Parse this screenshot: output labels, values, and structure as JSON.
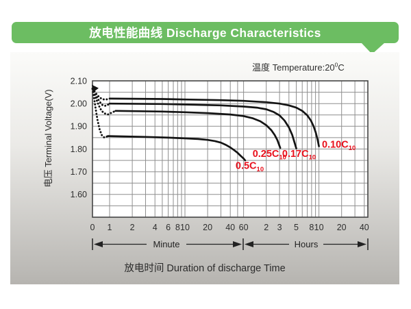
{
  "banner": {
    "title": "放电性能曲线 Discharge Characteristics"
  },
  "chart_data": {
    "type": "line",
    "title": "放电性能曲线 Discharge Characteristics",
    "temperature": {
      "prefix": "温度  Temperature:20",
      "sup": "0",
      "suffix": "C"
    },
    "ylabel": "电压 Terminal Voltage(V)",
    "xlabel": "放电时间  Duration of discharge Time",
    "colors": {
      "accent_green": "#6cbd62",
      "curve": "#141414",
      "label_red": "#e8101c",
      "grid": "#8e8e8e",
      "border": "#454545",
      "text": "#2e2e2e"
    },
    "y_axis": {
      "min": 1.5,
      "max": 2.1,
      "grid_step": 0.05,
      "ticks": [
        {
          "v": 2.1,
          "label": "2.10"
        },
        {
          "v": 2.0,
          "label": "2.00"
        },
        {
          "v": 1.9,
          "label": "1.90"
        },
        {
          "v": 1.8,
          "label": "1.80"
        },
        {
          "v": 1.7,
          "label": "1.70"
        },
        {
          "v": 1.6,
          "label": "1.60"
        }
      ]
    },
    "x_axis": {
      "scale": "log-time-minutes",
      "unit_spans": [
        {
          "label": "Minute"
        },
        {
          "label": "Hours"
        }
      ],
      "gridlines_t": [
        1,
        2,
        3,
        4,
        5,
        6,
        7,
        8,
        9,
        10,
        20,
        30,
        40,
        50,
        60,
        120,
        180,
        240,
        300,
        360,
        420,
        480,
        540,
        600,
        1200,
        1800,
        2400
      ],
      "ticks": [
        {
          "t": 0,
          "label": "0"
        },
        {
          "t": 1,
          "label": "1"
        },
        {
          "t": 2,
          "label": "2"
        },
        {
          "t": 4,
          "label": "4"
        },
        {
          "t": 6,
          "label": "6"
        },
        {
          "t": 8,
          "label": "8"
        },
        {
          "t": 10,
          "label": "10"
        },
        {
          "t": 20,
          "label": "20"
        },
        {
          "t": 40,
          "label": "40"
        },
        {
          "t": 60,
          "label": "60"
        },
        {
          "t": 120,
          "label": "2"
        },
        {
          "t": 180,
          "label": "3"
        },
        {
          "t": 300,
          "label": "5"
        },
        {
          "t": 480,
          "label": "8"
        },
        {
          "t": 600,
          "label": "10"
        },
        {
          "t": 1200,
          "label": "20"
        },
        {
          "t": 2400,
          "label": "40"
        }
      ]
    },
    "start_point": {
      "t": 0,
      "v": 2.065
    },
    "series": [
      {
        "name": "0.10C",
        "sub": "10",
        "label_anchor": {
          "t": 658,
          "v": 1.806
        },
        "dip": [
          [
            0,
            2.065
          ],
          [
            0.1,
            2.055
          ],
          [
            0.25,
            2.04
          ],
          [
            0.4,
            2.028
          ],
          [
            0.55,
            2.02
          ],
          [
            0.75,
            2.017
          ],
          [
            1,
            2.022
          ]
        ],
        "points": [
          [
            1,
            2.022
          ],
          [
            5,
            2.02
          ],
          [
            10,
            2.018
          ],
          [
            30,
            2.015
          ],
          [
            60,
            2.012
          ],
          [
            120,
            2.006
          ],
          [
            180,
            2.0
          ],
          [
            240,
            1.992
          ],
          [
            300,
            1.982
          ],
          [
            360,
            1.968
          ],
          [
            420,
            1.948
          ],
          [
            470,
            1.925
          ],
          [
            510,
            1.9
          ],
          [
            545,
            1.872
          ],
          [
            575,
            1.842
          ],
          [
            600,
            1.812
          ]
        ]
      },
      {
        "name": "0.17C",
        "sub": "10",
        "label_anchor": {
          "t": 195,
          "v": 1.766
        },
        "dip": [
          [
            0,
            2.065
          ],
          [
            0.12,
            2.048
          ],
          [
            0.28,
            2.025
          ],
          [
            0.45,
            2.005
          ],
          [
            0.6,
            1.992
          ],
          [
            0.8,
            1.99
          ],
          [
            1,
            2.0
          ]
        ],
        "points": [
          [
            1,
            2.0
          ],
          [
            5,
            1.998
          ],
          [
            10,
            1.996
          ],
          [
            30,
            1.992
          ],
          [
            60,
            1.987
          ],
          [
            90,
            1.982
          ],
          [
            120,
            1.975
          ],
          [
            150,
            1.963
          ],
          [
            180,
            1.948
          ],
          [
            210,
            1.925
          ],
          [
            240,
            1.895
          ],
          [
            265,
            1.862
          ],
          [
            285,
            1.828
          ],
          [
            300,
            1.803
          ]
        ]
      },
      {
        "name": "0.25C",
        "sub": "10",
        "label_anchor": {
          "t": 79,
          "v": 1.766
        },
        "dip": [
          [
            0,
            2.065
          ],
          [
            0.12,
            2.04
          ],
          [
            0.28,
            2.008
          ],
          [
            0.45,
            1.978
          ],
          [
            0.65,
            1.958
          ],
          [
            0.9,
            1.952
          ],
          [
            1.2,
            1.968
          ]
        ],
        "points": [
          [
            1.2,
            1.968
          ],
          [
            5,
            1.965
          ],
          [
            10,
            1.962
          ],
          [
            20,
            1.958
          ],
          [
            40,
            1.952
          ],
          [
            60,
            1.945
          ],
          [
            80,
            1.935
          ],
          [
            100,
            1.922
          ],
          [
            120,
            1.905
          ],
          [
            140,
            1.883
          ],
          [
            155,
            1.862
          ],
          [
            168,
            1.84
          ],
          [
            178,
            1.818
          ],
          [
            184,
            1.805
          ]
        ]
      },
      {
        "name": "0.5C",
        "sub": "10",
        "label_anchor": {
          "t": 47,
          "v": 1.712
        },
        "dip": [
          [
            0,
            2.065
          ],
          [
            0.1,
            2.02
          ],
          [
            0.2,
            1.97
          ],
          [
            0.3,
            1.925
          ],
          [
            0.42,
            1.885
          ],
          [
            0.55,
            1.86
          ],
          [
            0.7,
            1.85
          ],
          [
            0.9,
            1.857
          ]
        ],
        "points": [
          [
            0.9,
            1.857
          ],
          [
            3,
            1.853
          ],
          [
            6,
            1.85
          ],
          [
            10,
            1.847
          ],
          [
            15,
            1.844
          ],
          [
            20,
            1.84
          ],
          [
            25,
            1.835
          ],
          [
            30,
            1.828
          ],
          [
            35,
            1.818
          ],
          [
            40,
            1.807
          ],
          [
            45,
            1.795
          ],
          [
            50,
            1.783
          ],
          [
            55,
            1.77
          ],
          [
            60,
            1.758
          ],
          [
            63,
            1.75
          ]
        ]
      }
    ]
  }
}
